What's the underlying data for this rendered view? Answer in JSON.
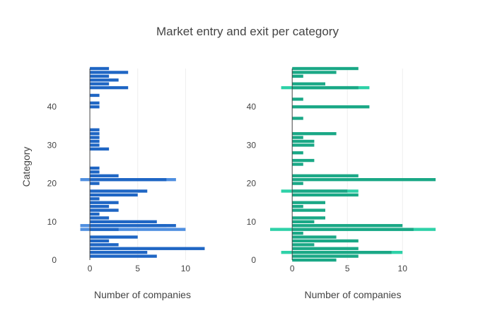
{
  "chart_data": {
    "type": "bar",
    "orientation": "horizontal",
    "title": "Market entry and exit per category",
    "ylabel": "Category",
    "grid": true,
    "legend": false,
    "panels": [
      {
        "xlabel": "Number of companies",
        "xlim": [
          -2,
          13
        ],
        "xticks": [
          0,
          5,
          10
        ],
        "ylim": [
          0,
          50
        ],
        "yticks": [
          0,
          10,
          20,
          30,
          40
        ],
        "color": "#1f66c4",
        "side_color": "#4f8fe0",
        "side_bars": [
          {
            "y": 8,
            "value": -1
          },
          {
            "y": 8,
            "value": 10
          },
          {
            "y": 9,
            "value": -1
          },
          {
            "y": 9,
            "value": 8
          },
          {
            "y": 21,
            "value": -1
          },
          {
            "y": 21,
            "value": 9
          }
        ],
        "bars": [
          {
            "y": 1,
            "value": 7
          },
          {
            "y": 2,
            "value": 6
          },
          {
            "y": 3,
            "value": 12
          },
          {
            "y": 4,
            "value": 3
          },
          {
            "y": 5,
            "value": 2
          },
          {
            "y": 6,
            "value": 5
          },
          {
            "y": 8,
            "value": 3
          },
          {
            "y": 9,
            "value": 9
          },
          {
            "y": 10,
            "value": 7
          },
          {
            "y": 11,
            "value": 2
          },
          {
            "y": 12,
            "value": 1
          },
          {
            "y": 13,
            "value": 3
          },
          {
            "y": 14,
            "value": 2
          },
          {
            "y": 15,
            "value": 3
          },
          {
            "y": 16,
            "value": 1
          },
          {
            "y": 17,
            "value": 5
          },
          {
            "y": 18,
            "value": 6
          },
          {
            "y": 20,
            "value": 1
          },
          {
            "y": 21,
            "value": 8
          },
          {
            "y": 22,
            "value": 3
          },
          {
            "y": 23,
            "value": 1
          },
          {
            "y": 24,
            "value": 1
          },
          {
            "y": 29,
            "value": 2
          },
          {
            "y": 30,
            "value": 1
          },
          {
            "y": 31,
            "value": 1
          },
          {
            "y": 32,
            "value": 1
          },
          {
            "y": 33,
            "value": 1
          },
          {
            "y": 34,
            "value": 1
          },
          {
            "y": 40,
            "value": 1
          },
          {
            "y": 41,
            "value": 1
          },
          {
            "y": 43,
            "value": 1
          },
          {
            "y": 45,
            "value": 4
          },
          {
            "y": 46,
            "value": 2
          },
          {
            "y": 47,
            "value": 3
          },
          {
            "y": 48,
            "value": 2
          },
          {
            "y": 49,
            "value": 4
          },
          {
            "y": 50,
            "value": 2
          }
        ]
      },
      {
        "xlabel": "Number of companies",
        "xlim": [
          -2,
          13
        ],
        "xticks": [
          0,
          5,
          10
        ],
        "ylim": [
          0,
          50
        ],
        "yticks": [
          0,
          10,
          20,
          30,
          40
        ],
        "color": "#1aa886",
        "side_color": "#2ed1a8",
        "side_bars": [
          {
            "y": 2,
            "value": -1
          },
          {
            "y": 2,
            "value": 10
          },
          {
            "y": 8,
            "value": -2
          },
          {
            "y": 8,
            "value": 13
          },
          {
            "y": 18,
            "value": -1
          },
          {
            "y": 18,
            "value": 6
          },
          {
            "y": 45,
            "value": -1
          },
          {
            "y": 45,
            "value": 7
          }
        ],
        "bars": [
          {
            "y": 0,
            "value": 4
          },
          {
            "y": 1,
            "value": 6
          },
          {
            "y": 2,
            "value": 9
          },
          {
            "y": 3,
            "value": 6
          },
          {
            "y": 4,
            "value": 2
          },
          {
            "y": 5,
            "value": 6
          },
          {
            "y": 6,
            "value": 4
          },
          {
            "y": 7,
            "value": 1
          },
          {
            "y": 8,
            "value": 11
          },
          {
            "y": 9,
            "value": 10
          },
          {
            "y": 10,
            "value": 2
          },
          {
            "y": 11,
            "value": 3
          },
          {
            "y": 13,
            "value": 3
          },
          {
            "y": 14,
            "value": 1
          },
          {
            "y": 15,
            "value": 3
          },
          {
            "y": 17,
            "value": 6
          },
          {
            "y": 18,
            "value": 5
          },
          {
            "y": 20,
            "value": 1
          },
          {
            "y": 21,
            "value": 13
          },
          {
            "y": 22,
            "value": 6
          },
          {
            "y": 25,
            "value": 1
          },
          {
            "y": 26,
            "value": 2
          },
          {
            "y": 28,
            "value": 1
          },
          {
            "y": 30,
            "value": 2
          },
          {
            "y": 31,
            "value": 2
          },
          {
            "y": 32,
            "value": 1
          },
          {
            "y": 33,
            "value": 4
          },
          {
            "y": 37,
            "value": 1
          },
          {
            "y": 40,
            "value": 7
          },
          {
            "y": 42,
            "value": 1
          },
          {
            "y": 45,
            "value": 6
          },
          {
            "y": 46,
            "value": 3
          },
          {
            "y": 48,
            "value": 1
          },
          {
            "y": 49,
            "value": 4
          },
          {
            "y": 50,
            "value": 6
          }
        ]
      }
    ]
  }
}
